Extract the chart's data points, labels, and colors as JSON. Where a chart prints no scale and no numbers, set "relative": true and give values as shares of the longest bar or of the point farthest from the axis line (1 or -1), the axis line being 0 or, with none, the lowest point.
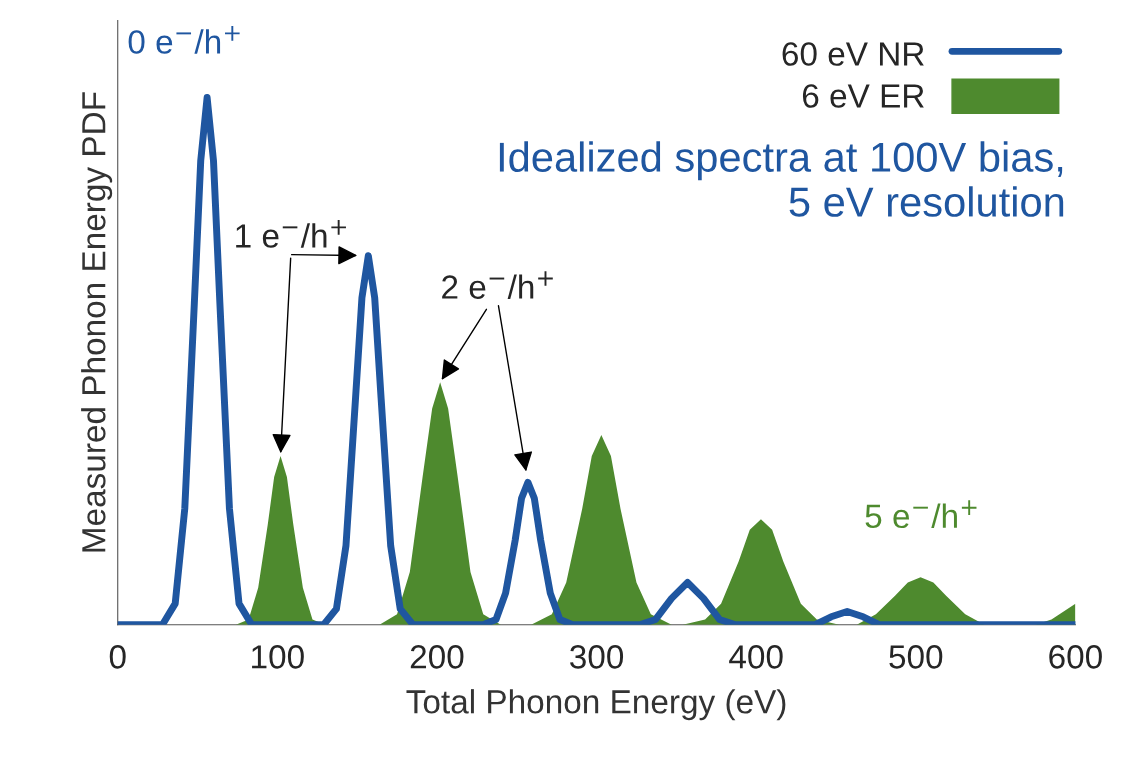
{
  "chart_data": {
    "type": "line",
    "relative": true,
    "xlabel": "Total Phonon Energy (eV)",
    "ylabel": "Measured Phonon Energy PDF",
    "xlim": [
      0,
      600
    ],
    "xticks": [
      0,
      100,
      200,
      300,
      400,
      500,
      600
    ],
    "legend": "top right",
    "grid": false,
    "series": [
      {
        "name": "60 eV NR",
        "type": "line",
        "color": "#1f56a0",
        "x": [
          0,
          28,
          36,
          42,
          48,
          52,
          56,
          60,
          64,
          70,
          76,
          84,
          129,
          137,
          143,
          149,
          153,
          157,
          161,
          165,
          171,
          177,
          185,
          229,
          237,
          243,
          249,
          253,
          257,
          261,
          265,
          271,
          277,
          285,
          327,
          337,
          347,
          357,
          367,
          377,
          387,
          437,
          447,
          457,
          467,
          477,
          490,
          600
        ],
        "values": [
          0,
          0,
          0.04,
          0.22,
          0.61,
          0.88,
          1,
          0.88,
          0.61,
          0.22,
          0.04,
          0,
          0,
          0.03,
          0.15,
          0.43,
          0.62,
          0.7,
          0.62,
          0.43,
          0.15,
          0.03,
          0,
          0,
          0.01,
          0.06,
          0.16,
          0.24,
          0.27,
          0.24,
          0.16,
          0.06,
          0.01,
          0,
          0,
          0.01,
          0.05,
          0.08,
          0.05,
          0.01,
          0,
          0,
          0.015,
          0.025,
          0.015,
          0,
          0,
          0
        ]
      },
      {
        "name": "6 eV ER",
        "type": "area",
        "color": "#4e8a2e",
        "x": [
          0,
          74,
          82,
          88,
          94,
          98,
          102,
          106,
          110,
          116,
          122,
          130,
          164,
          175,
          183,
          191,
          197,
          202,
          207,
          213,
          221,
          229,
          240,
          259,
          272,
          281,
          291,
          297,
          303,
          309,
          315,
          325,
          334,
          347,
          354,
          368,
          378,
          389,
          396,
          403,
          410,
          417,
          428,
          438,
          452,
          463,
          475,
          487,
          495,
          503,
          511,
          519,
          531,
          543,
          560,
          575,
          585,
          595,
          600
        ],
        "values": [
          0,
          0,
          0.01,
          0.07,
          0.19,
          0.28,
          0.32,
          0.28,
          0.19,
          0.07,
          0.01,
          0,
          0,
          0.02,
          0.1,
          0.28,
          0.41,
          0.46,
          0.41,
          0.28,
          0.1,
          0.02,
          0,
          0,
          0.02,
          0.08,
          0.22,
          0.32,
          0.36,
          0.32,
          0.22,
          0.08,
          0.02,
          0,
          0,
          0.01,
          0.04,
          0.12,
          0.18,
          0.2,
          0.18,
          0.12,
          0.04,
          0.01,
          0,
          0,
          0.02,
          0.055,
          0.08,
          0.09,
          0.08,
          0.055,
          0.02,
          0,
          0,
          0,
          0.01,
          0.03,
          0.04
        ]
      }
    ],
    "annotations": [
      "0 e$^{−}$/h$^{+}$",
      {
        "text": "1 e$^{−}$/h$^{+}$",
        "x": 102,
        "y": 0.32
      },
      {
        "text": "2 e$^{−}$/h$^{+}$",
        "x": 202,
        "y": 0.46
      },
      "5 e$^{−}$/h$^{+}$",
      "Idealized spectra at 100V bias,\n5 eV resolution"
    ]
  }
}
